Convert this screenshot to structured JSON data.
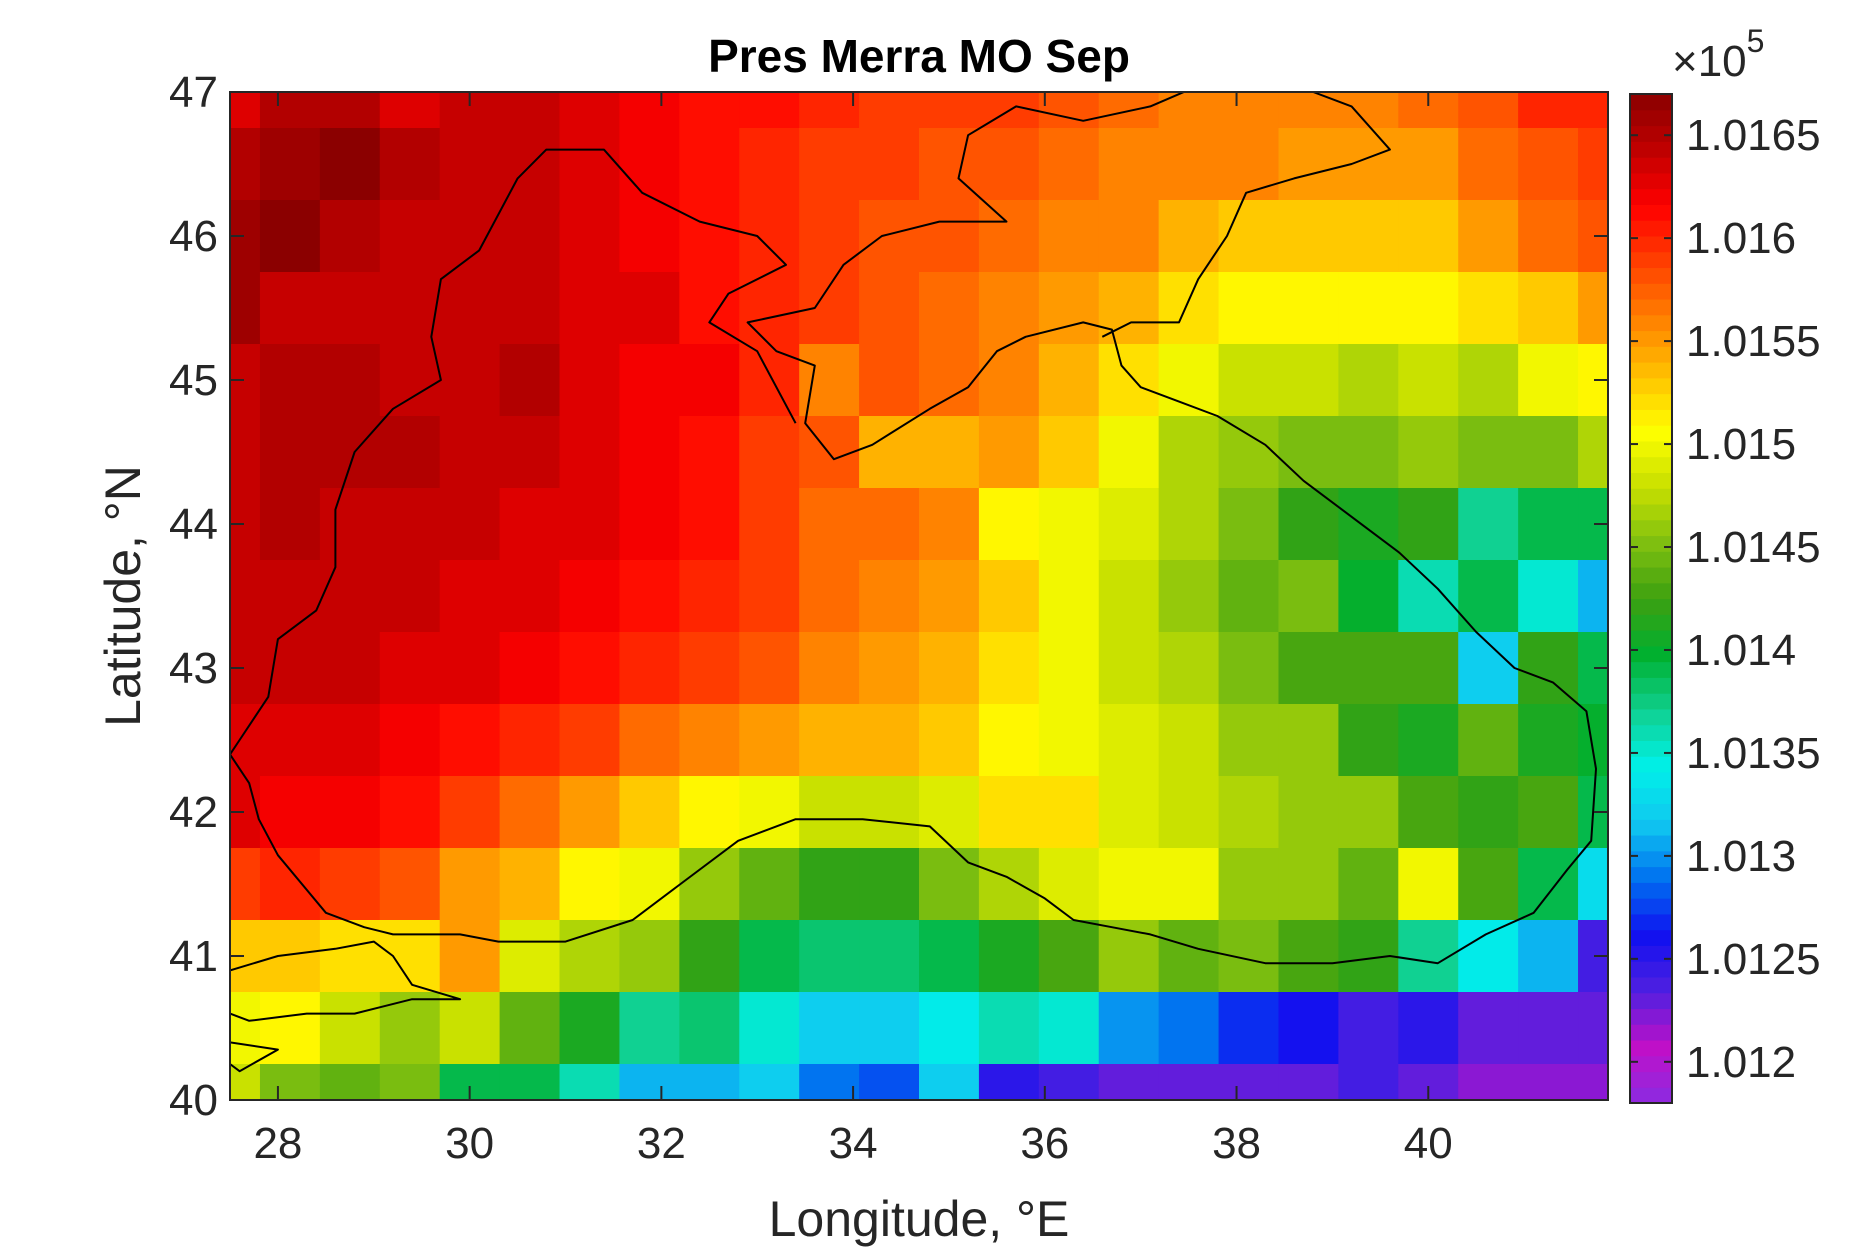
{
  "chart_data": {
    "type": "heatmap",
    "title": "Pres Merra MO Sep",
    "xlabel": "Longitude, °E",
    "ylabel": "Latitude, °N",
    "xlim": [
      27.5,
      41.875
    ],
    "ylim": [
      40,
      47
    ],
    "xticks": [
      "28",
      "30",
      "32",
      "34",
      "36",
      "38",
      "40"
    ],
    "xtick_values": [
      28,
      30,
      32,
      34,
      36,
      38,
      40
    ],
    "yticks": [
      "40",
      "41",
      "42",
      "43",
      "44",
      "45",
      "46",
      "47"
    ],
    "ytick_values": [
      40,
      41,
      42,
      43,
      44,
      45,
      46,
      47
    ],
    "colorbar": {
      "multiplier_base": "×10",
      "multiplier_exp": "5",
      "min": 1.0118,
      "max": 1.0167,
      "ticks": [
        "1.012",
        "1.0125",
        "1.013",
        "1.0135",
        "1.014",
        "1.0145",
        "1.015",
        "1.0155",
        "1.016",
        "1.0165"
      ],
      "tick_values": [
        1.012,
        1.0125,
        1.013,
        1.0135,
        1.014,
        1.0145,
        1.015,
        1.0155,
        1.016,
        1.0165
      ],
      "colormap": "jet-like",
      "colormap_stops": [
        "#8a2be2",
        "#c010c8",
        "#5020e0",
        "#1010f0",
        "#0070f0",
        "#10c8f0",
        "#00f0e8",
        "#10d090",
        "#00b030",
        "#3ca010",
        "#80c010",
        "#c8e000",
        "#ffff00",
        "#ffc000",
        "#ff8000",
        "#ff4000",
        "#ff0000",
        "#c00000",
        "#8b0000"
      ]
    },
    "grid": {
      "lon_centers": [
        27.5,
        28.125,
        28.75,
        29.375,
        30.0,
        30.625,
        31.25,
        31.875,
        32.5,
        33.125,
        33.75,
        34.375,
        35.0,
        35.625,
        36.25,
        36.875,
        37.5,
        38.125,
        38.75,
        39.375,
        40.0,
        40.625,
        41.25,
        41.875
      ],
      "lat_centers": [
        47.0,
        46.5,
        46.0,
        45.5,
        45.0,
        44.5,
        44.0,
        43.5,
        43.0,
        42.5,
        42.0,
        41.5,
        41.0,
        40.5,
        40.0
      ],
      "values": [
        [
          1.0163,
          1.0165,
          1.0165,
          1.0163,
          1.0164,
          1.0164,
          1.0163,
          1.0162,
          1.0161,
          1.0161,
          1.016,
          1.0159,
          1.0159,
          1.0159,
          1.0158,
          1.0157,
          1.0156,
          1.0156,
          1.0156,
          1.0156,
          1.0157,
          1.0158,
          1.016,
          1.016
        ],
        [
          1.0165,
          1.0166,
          1.0167,
          1.0165,
          1.0164,
          1.0164,
          1.0163,
          1.0162,
          1.0161,
          1.016,
          1.0159,
          1.0159,
          1.0158,
          1.0158,
          1.0157,
          1.0156,
          1.0156,
          1.0156,
          1.0155,
          1.0155,
          1.0155,
          1.0157,
          1.0158,
          1.0159
        ],
        [
          1.0166,
          1.0167,
          1.0165,
          1.0164,
          1.0164,
          1.0164,
          1.0163,
          1.0162,
          1.0161,
          1.016,
          1.0159,
          1.0158,
          1.0158,
          1.0157,
          1.0156,
          1.0156,
          1.0154,
          1.0153,
          1.0153,
          1.0153,
          1.0153,
          1.0155,
          1.0157,
          1.0158
        ],
        [
          1.0166,
          1.0164,
          1.0164,
          1.0164,
          1.0164,
          1.0164,
          1.0163,
          1.0163,
          1.0161,
          1.016,
          1.0159,
          1.0158,
          1.0157,
          1.0156,
          1.0155,
          1.0154,
          1.0152,
          1.0151,
          1.0151,
          1.0151,
          1.0151,
          1.0152,
          1.0153,
          1.0155
        ],
        [
          1.0164,
          1.0165,
          1.0165,
          1.0164,
          1.0164,
          1.0165,
          1.0163,
          1.0162,
          1.0162,
          1.016,
          1.0156,
          1.0158,
          1.0157,
          1.0156,
          1.0154,
          1.0152,
          1.015,
          1.0148,
          1.0148,
          1.0147,
          1.0148,
          1.0147,
          1.015,
          1.0151
        ],
        [
          1.0164,
          1.0165,
          1.0165,
          1.0165,
          1.0164,
          1.0164,
          1.0163,
          1.0162,
          1.0161,
          1.0159,
          1.0158,
          1.0154,
          1.0154,
          1.0155,
          1.0153,
          1.015,
          1.0147,
          1.0146,
          1.0145,
          1.0145,
          1.0146,
          1.0145,
          1.0145,
          1.0147
        ],
        [
          1.0164,
          1.0165,
          1.0164,
          1.0164,
          1.0164,
          1.0163,
          1.0163,
          1.0162,
          1.0161,
          1.0159,
          1.0157,
          1.0157,
          1.0156,
          1.0151,
          1.015,
          1.0149,
          1.0147,
          1.0145,
          1.0142,
          1.0141,
          1.0142,
          1.0137,
          1.0139,
          1.0139
        ],
        [
          1.0164,
          1.0164,
          1.0164,
          1.0164,
          1.0163,
          1.0163,
          1.0162,
          1.0161,
          1.016,
          1.0159,
          1.0157,
          1.0156,
          1.0155,
          1.0153,
          1.015,
          1.0148,
          1.0146,
          1.0144,
          1.0145,
          1.014,
          1.0136,
          1.0139,
          1.0135,
          1.0131
        ],
        [
          1.0164,
          1.0164,
          1.0164,
          1.0163,
          1.0163,
          1.0162,
          1.0161,
          1.016,
          1.0159,
          1.0158,
          1.0156,
          1.0155,
          1.0154,
          1.0152,
          1.015,
          1.0148,
          1.0147,
          1.0145,
          1.0143,
          1.0143,
          1.0143,
          1.0132,
          1.0142,
          1.0139
        ],
        [
          1.0163,
          1.0163,
          1.0163,
          1.0162,
          1.0161,
          1.016,
          1.0159,
          1.0157,
          1.0156,
          1.0155,
          1.0154,
          1.0154,
          1.0153,
          1.0151,
          1.015,
          1.0149,
          1.0148,
          1.0146,
          1.0146,
          1.0142,
          1.0141,
          1.0144,
          1.0141,
          1.014
        ],
        [
          1.0163,
          1.0162,
          1.0162,
          1.0161,
          1.0159,
          1.0157,
          1.0155,
          1.0153,
          1.0151,
          1.015,
          1.0148,
          1.0148,
          1.0149,
          1.0152,
          1.0152,
          1.0149,
          1.0148,
          1.0147,
          1.0146,
          1.0146,
          1.0143,
          1.0142,
          1.0143,
          1.0139
        ],
        [
          1.0159,
          1.016,
          1.0159,
          1.0158,
          1.0155,
          1.0154,
          1.0151,
          1.015,
          1.0146,
          1.0144,
          1.0142,
          1.0142,
          1.0145,
          1.0147,
          1.0149,
          1.015,
          1.015,
          1.0146,
          1.0146,
          1.0144,
          1.015,
          1.0143,
          1.0139,
          1.0133
        ],
        [
          1.0153,
          1.0153,
          1.0152,
          1.0152,
          1.0155,
          1.0149,
          1.0147,
          1.0146,
          1.0142,
          1.0139,
          1.0138,
          1.0138,
          1.0139,
          1.0141,
          1.0143,
          1.0146,
          1.0144,
          1.0145,
          1.0143,
          1.0142,
          1.0137,
          1.0134,
          1.0131,
          1.0124
        ],
        [
          1.015,
          1.0151,
          1.0148,
          1.0146,
          1.0148,
          1.0144,
          1.0141,
          1.0137,
          1.0138,
          1.0135,
          1.0132,
          1.0132,
          1.0134,
          1.0136,
          1.0135,
          1.013,
          1.0129,
          1.0127,
          1.0126,
          1.0124,
          1.0125,
          1.0123,
          1.0123,
          1.0123
        ],
        [
          1.0148,
          1.0145,
          1.0144,
          1.0145,
          1.0139,
          1.0139,
          1.0136,
          1.0131,
          1.0131,
          1.0132,
          1.0129,
          1.0128,
          1.0132,
          1.0125,
          1.0124,
          1.0123,
          1.0123,
          1.0123,
          1.0123,
          1.0124,
          1.0123,
          1.0122,
          1.0122,
          1.0122
        ]
      ]
    },
    "coastline": [
      [
        [
          27.5,
          42.4
        ],
        [
          27.7,
          42.2
        ],
        [
          27.8,
          41.95
        ],
        [
          28.0,
          41.7
        ],
        [
          28.5,
          41.3
        ],
        [
          28.9,
          41.2
        ],
        [
          29.2,
          41.15
        ],
        [
          29.9,
          41.15
        ],
        [
          30.3,
          41.1
        ],
        [
          31.0,
          41.1
        ],
        [
          31.7,
          41.25
        ],
        [
          32.2,
          41.5
        ],
        [
          32.8,
          41.8
        ],
        [
          33.4,
          41.95
        ],
        [
          34.1,
          41.95
        ],
        [
          34.8,
          41.9
        ],
        [
          35.2,
          41.65
        ],
        [
          35.6,
          41.55
        ],
        [
          36.0,
          41.4
        ],
        [
          36.3,
          41.25
        ],
        [
          36.7,
          41.2
        ],
        [
          37.1,
          41.15
        ],
        [
          37.6,
          41.05
        ],
        [
          38.3,
          40.95
        ],
        [
          39.0,
          40.95
        ],
        [
          39.6,
          41.0
        ],
        [
          40.1,
          40.95
        ],
        [
          40.6,
          41.15
        ],
        [
          41.1,
          41.3
        ],
        [
          41.45,
          41.6
        ],
        [
          41.7,
          41.8
        ],
        [
          41.75,
          42.3
        ],
        [
          41.65,
          42.7
        ],
        [
          41.3,
          42.9
        ],
        [
          40.9,
          43.0
        ],
        [
          40.5,
          43.25
        ],
        [
          40.1,
          43.55
        ],
        [
          39.7,
          43.8
        ],
        [
          39.2,
          44.05
        ],
        [
          38.7,
          44.3
        ],
        [
          38.3,
          44.55
        ],
        [
          37.8,
          44.75
        ],
        [
          37.4,
          44.85
        ],
        [
          37.0,
          44.95
        ],
        [
          36.8,
          45.1
        ],
        [
          36.7,
          45.35
        ],
        [
          36.4,
          45.4
        ],
        [
          35.8,
          45.3
        ],
        [
          35.5,
          45.2
        ],
        [
          35.2,
          44.95
        ],
        [
          34.8,
          44.8
        ],
        [
          34.2,
          44.55
        ],
        [
          33.8,
          44.45
        ],
        [
          33.5,
          44.7
        ],
        [
          33.6,
          45.1
        ],
        [
          33.2,
          45.2
        ],
        [
          32.9,
          45.4
        ],
        [
          33.6,
          45.5
        ],
        [
          33.9,
          45.8
        ],
        [
          34.3,
          46.0
        ],
        [
          34.9,
          46.1
        ],
        [
          35.6,
          46.1
        ],
        [
          35.1,
          46.4
        ],
        [
          35.2,
          46.7
        ],
        [
          35.7,
          46.9
        ],
        [
          36.4,
          46.8
        ],
        [
          37.1,
          46.9
        ],
        [
          37.8,
          47.1
        ],
        [
          38.4,
          47.1
        ],
        [
          38.8,
          47.0
        ],
        [
          39.2,
          46.9
        ],
        [
          39.6,
          46.6
        ],
        [
          39.2,
          46.5
        ],
        [
          38.6,
          46.4
        ],
        [
          38.1,
          46.3
        ],
        [
          37.9,
          46.0
        ],
        [
          37.6,
          45.7
        ],
        [
          37.4,
          45.4
        ],
        [
          36.9,
          45.4
        ],
        [
          36.6,
          45.3
        ]
      ],
      [
        [
          33.4,
          44.7
        ],
        [
          33.0,
          45.2
        ],
        [
          32.5,
          45.4
        ],
        [
          32.7,
          45.6
        ],
        [
          33.3,
          45.8
        ],
        [
          33.0,
          46.0
        ],
        [
          32.4,
          46.1
        ],
        [
          31.8,
          46.3
        ],
        [
          31.4,
          46.6
        ],
        [
          30.8,
          46.6
        ],
        [
          30.5,
          46.4
        ],
        [
          30.1,
          45.9
        ],
        [
          29.7,
          45.7
        ],
        [
          29.6,
          45.3
        ],
        [
          29.7,
          45.0
        ],
        [
          29.2,
          44.8
        ],
        [
          28.8,
          44.5
        ],
        [
          28.6,
          44.1
        ],
        [
          28.6,
          43.7
        ],
        [
          28.4,
          43.4
        ],
        [
          28.0,
          43.2
        ],
        [
          27.9,
          42.8
        ],
        [
          27.6,
          42.5
        ],
        [
          27.5,
          42.4
        ]
      ],
      [
        [
          27.5,
          40.9
        ],
        [
          28.0,
          41.0
        ],
        [
          28.6,
          41.05
        ],
        [
          29.0,
          41.1
        ],
        [
          29.2,
          41.0
        ],
        [
          29.4,
          40.8
        ],
        [
          29.9,
          40.7
        ],
        [
          29.4,
          40.7
        ],
        [
          28.8,
          40.6
        ],
        [
          28.3,
          40.6
        ],
        [
          27.7,
          40.55
        ],
        [
          27.5,
          40.6
        ]
      ],
      [
        [
          27.5,
          40.4
        ],
        [
          28.0,
          40.35
        ],
        [
          27.6,
          40.2
        ],
        [
          27.5,
          40.25
        ]
      ]
    ]
  }
}
